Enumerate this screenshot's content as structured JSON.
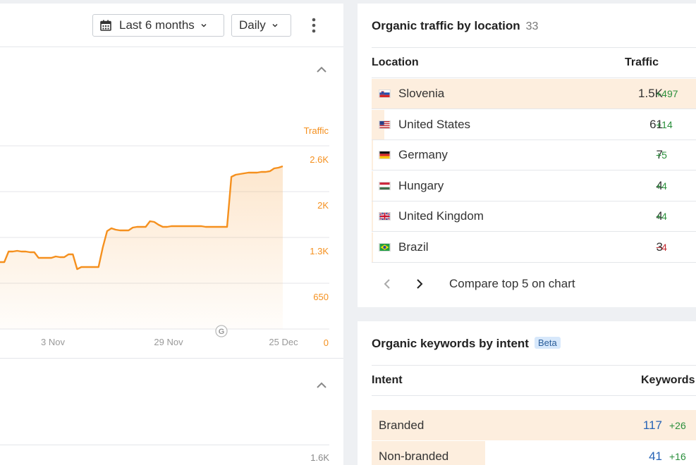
{
  "toolbar": {
    "date_range_label": "Last 6 months",
    "granularity_label": "Daily",
    "icons": {
      "calendar": "calendar-icon",
      "chevron": "chevron-down-icon",
      "more": "kebab-icon"
    }
  },
  "chart_data": {
    "type": "area",
    "series": [
      {
        "name": "Traffic",
        "color": "#f5901e",
        "values": [
          950,
          950,
          1100,
          1100,
          1110,
          1100,
          1100,
          1090,
          1090,
          1010,
          1010,
          1010,
          1010,
          1030,
          1020,
          1020,
          1060,
          1060,
          850,
          880,
          880,
          880,
          880,
          880,
          1160,
          1390,
          1430,
          1410,
          1400,
          1400,
          1400,
          1440,
          1450,
          1450,
          1450,
          1530,
          1520,
          1480,
          1450,
          1450,
          1460,
          1460,
          1460,
          1460,
          1460,
          1460,
          1460,
          1460,
          1450,
          1450,
          1450,
          1450,
          1450,
          1450,
          2160,
          2190,
          2200,
          2210,
          2220,
          2220,
          2220,
          2230,
          2230,
          2240,
          2280,
          2290,
          2310
        ]
      }
    ],
    "x_tick_labels": [
      "3 Nov",
      "29 Nov",
      "25 Dec"
    ],
    "y_axis_label": "Traffic",
    "y_tick_labels": [
      "0",
      "650",
      "1.3K",
      "2K",
      "2.6K"
    ],
    "ylim": [
      0,
      2600
    ],
    "grid": true,
    "marker_label": "G",
    "lower_axis_label": "1.6K"
  },
  "location_card": {
    "title": "Organic traffic by location",
    "count": "33",
    "col_location": "Location",
    "col_traffic": "Traffic",
    "rows": [
      {
        "name": "Slovenia",
        "flag": "si",
        "value": "1.5K",
        "delta": "+497",
        "dir": "pos",
        "share": 1.0
      },
      {
        "name": "United States",
        "flag": "us",
        "value": "61",
        "delta": "+14",
        "dir": "pos",
        "share": 0.04
      },
      {
        "name": "Germany",
        "flag": "de",
        "value": "7",
        "delta": "+5",
        "dir": "pos",
        "share": 0.005
      },
      {
        "name": "Hungary",
        "flag": "hu",
        "value": "4",
        "delta": "+4",
        "dir": "pos",
        "share": 0.003
      },
      {
        "name": "United Kingdom",
        "flag": "gb",
        "value": "4",
        "delta": "+4",
        "dir": "pos",
        "share": 0.003
      },
      {
        "name": "Brazil",
        "flag": "br",
        "value": "3",
        "delta": "−4",
        "dir": "neg",
        "share": 0.002
      }
    ],
    "compare_label": "Compare top 5 on chart"
  },
  "intent_card": {
    "title": "Organic keywords by intent",
    "badge": "Beta",
    "col_intent": "Intent",
    "col_keywords": "Keywords",
    "rows": [
      {
        "name": "Branded",
        "value": "117",
        "delta": "+26",
        "dir": "pos",
        "share": 1.0
      },
      {
        "name": "Non-branded",
        "value": "41",
        "delta": "+16",
        "dir": "pos",
        "share": 0.35
      }
    ]
  }
}
